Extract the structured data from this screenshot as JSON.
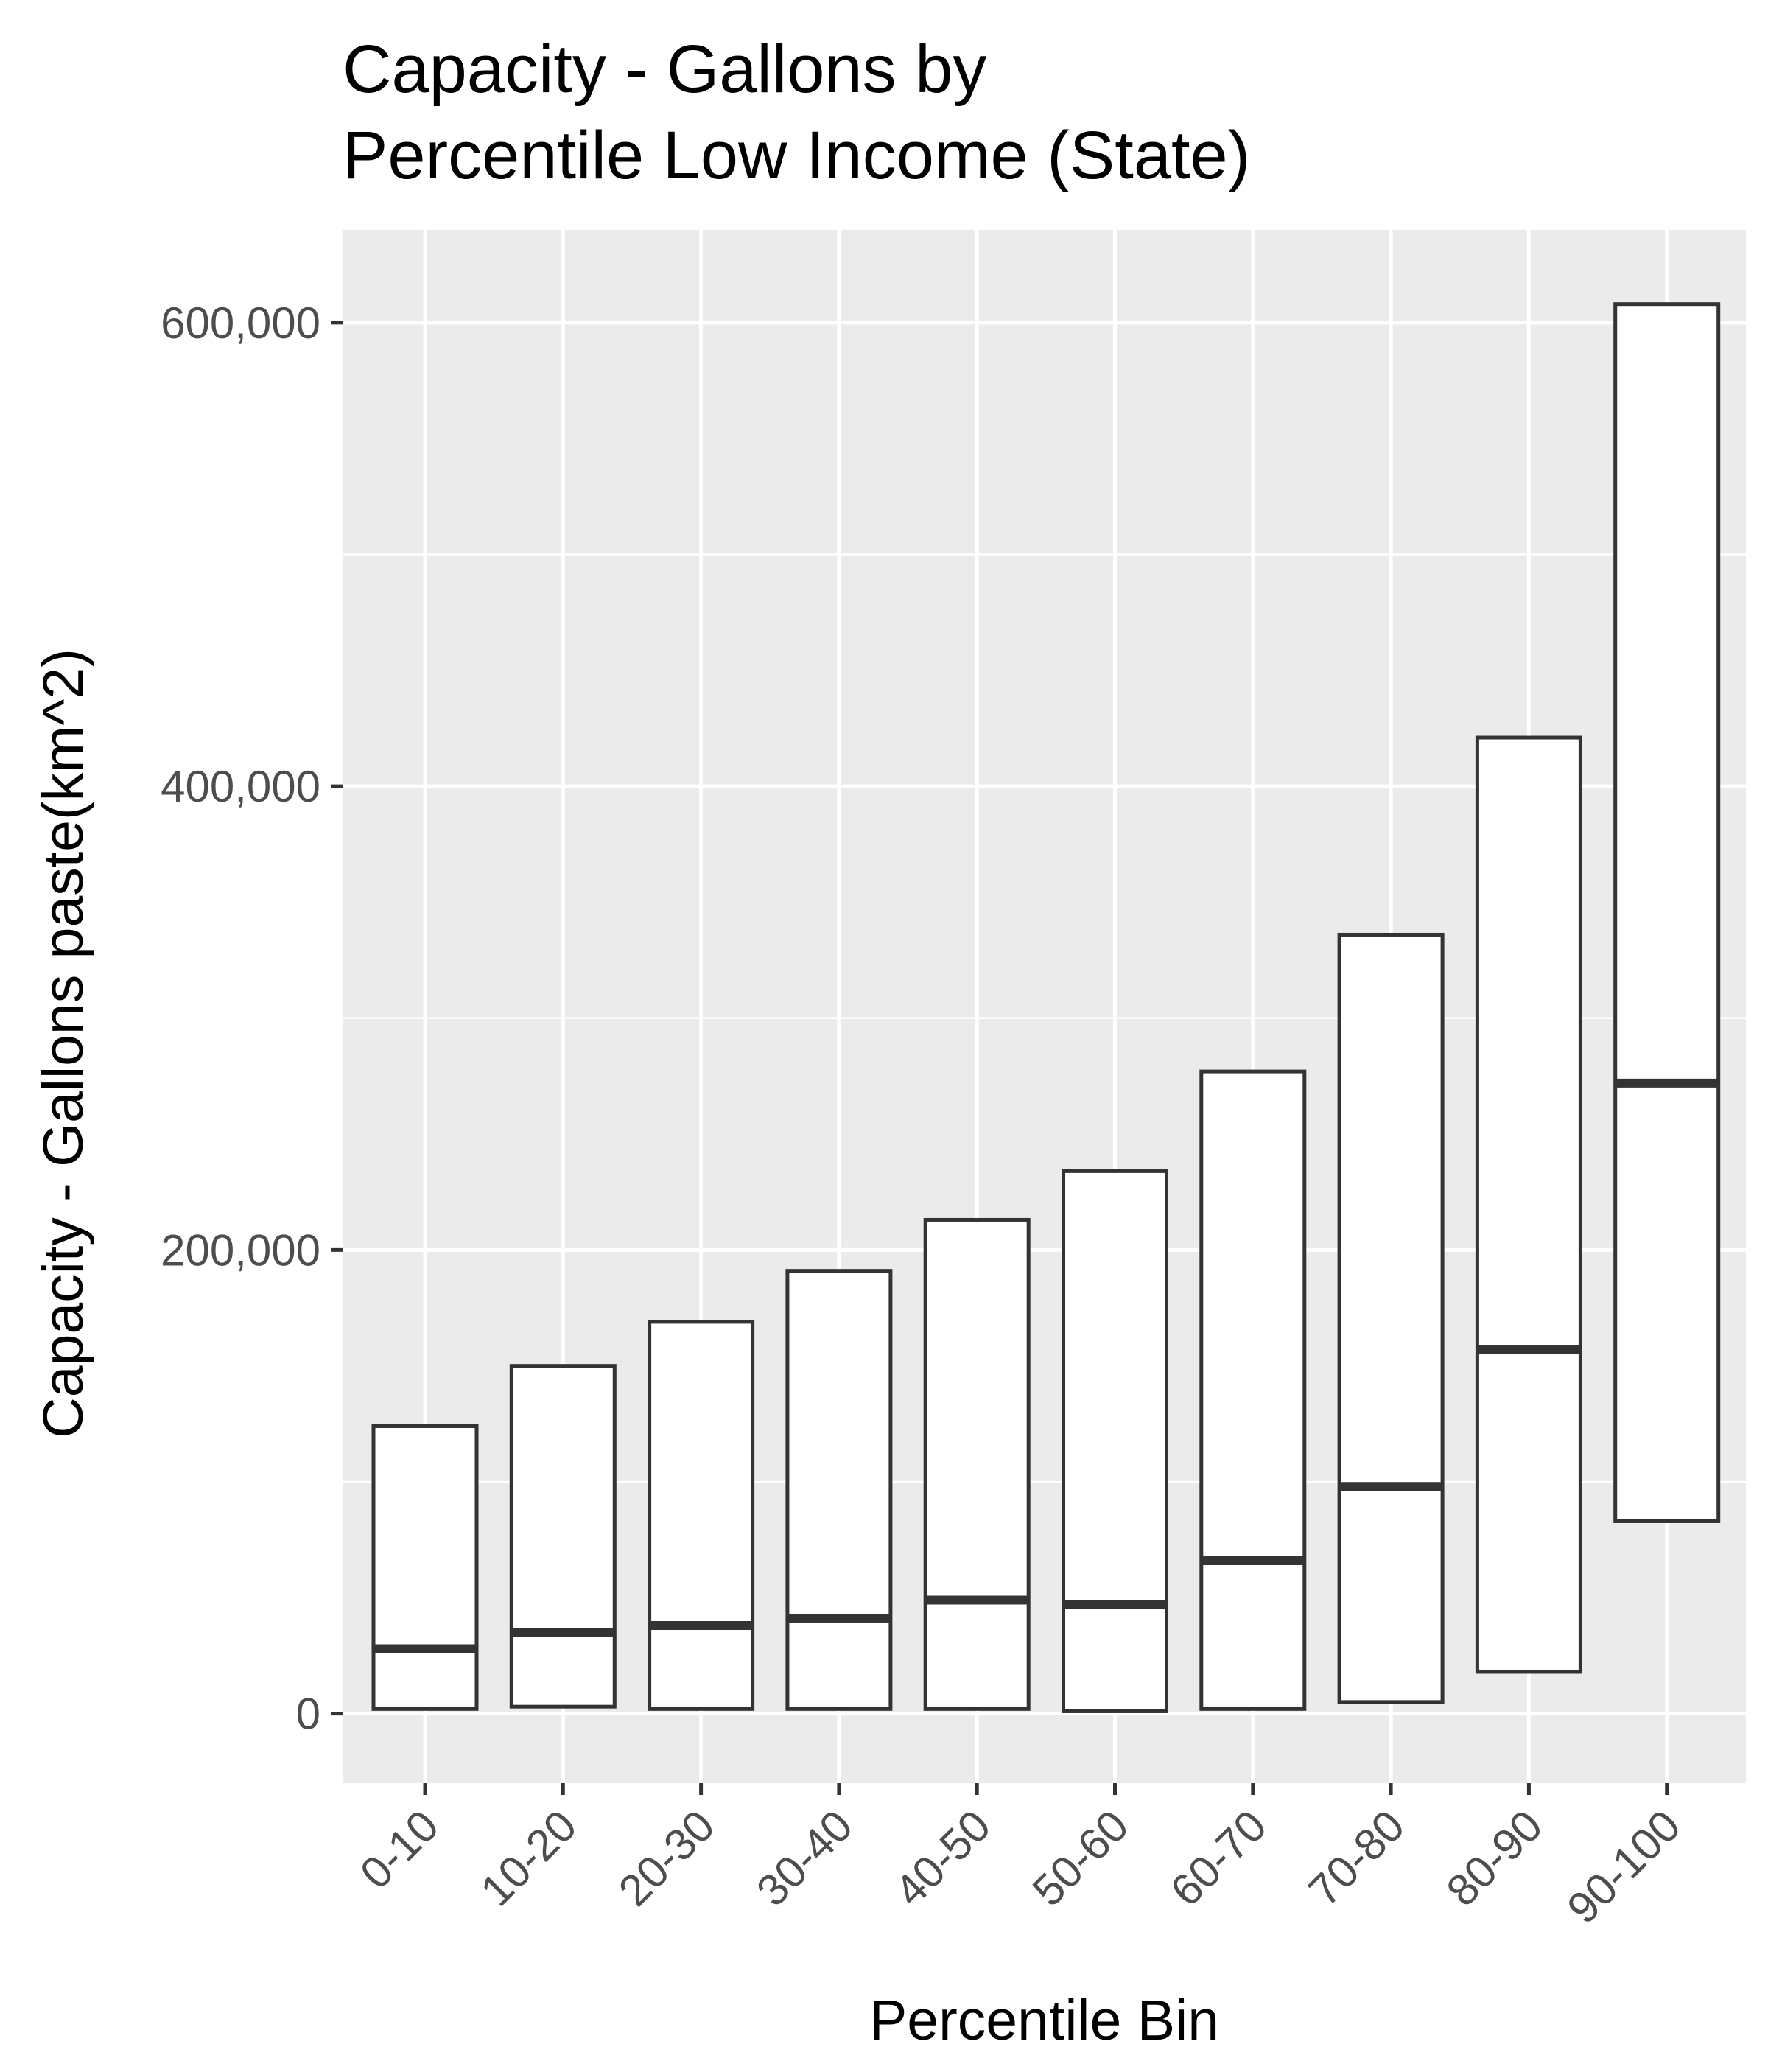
{
  "chart_data": {
    "type": "boxplot",
    "title_lines": [
      "Capacity - Gallons by",
      "Percentile Low Income (State)"
    ],
    "xlabel": "Percentile Bin",
    "ylabel": "Capacity - Gallons paste(km^2)",
    "ylim": [
      -30000,
      640000
    ],
    "y_major_ticks": [
      0,
      200000,
      400000,
      600000
    ],
    "y_tick_labels": [
      "0",
      "200,000",
      "400,000",
      "600,000"
    ],
    "y_minor_ticks": [
      100000,
      300000,
      500000
    ],
    "grid": true,
    "legend": "none",
    "categories": [
      "0-10",
      "10-20",
      "20-30",
      "30-40",
      "40-50",
      "50-60",
      "60-70",
      "70-80",
      "80-90",
      "90-100"
    ],
    "boxes": [
      {
        "lower": 2000,
        "median": 28000,
        "upper": 124000
      },
      {
        "lower": 3000,
        "median": 35000,
        "upper": 150000
      },
      {
        "lower": 2000,
        "median": 38000,
        "upper": 169000
      },
      {
        "lower": 2000,
        "median": 41000,
        "upper": 191000
      },
      {
        "lower": 2000,
        "median": 49000,
        "upper": 213000
      },
      {
        "lower": 1000,
        "median": 47000,
        "upper": 234000
      },
      {
        "lower": 2000,
        "median": 66000,
        "upper": 277000
      },
      {
        "lower": 5000,
        "median": 98000,
        "upper": 336000
      },
      {
        "lower": 18000,
        "median": 157000,
        "upper": 421000
      },
      {
        "lower": 83000,
        "median": 272000,
        "upper": 608000
      }
    ],
    "colors": {
      "panel": "#ebebeb",
      "grid": "#ffffff",
      "box_stroke": "#333333",
      "box_fill": "#ffffff",
      "tick_text": "#4d4d4d"
    }
  }
}
